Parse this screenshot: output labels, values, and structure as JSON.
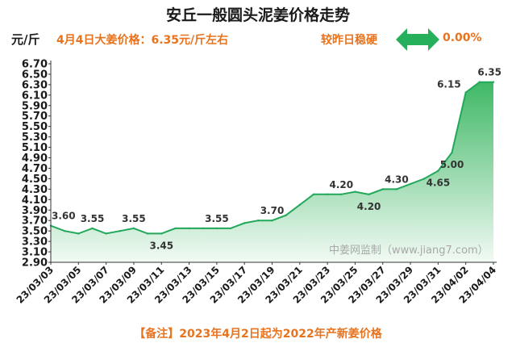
{
  "header": {
    "title": "安丘一般圆头泥姜价格走势",
    "unit": "元/斤",
    "price_note": "4月4日大姜价格：6.35元/斤左右",
    "compare_label": "较昨日稳硬",
    "change": "0.00%"
  },
  "footer": {
    "note": "【备注】2023年4月2日起为2022年产新姜价格"
  },
  "watermark": "中姜网监制（www.jiang7.com）",
  "colors": {
    "accent": "#e8731e",
    "arrow": "#27b05c",
    "line": "#22a85a",
    "fill_top": "#4cbf6e",
    "fill_bottom": "#f2faf4"
  },
  "icons": {
    "trend_arrow": "double-arrow-icon"
  },
  "chart_data": {
    "type": "area",
    "title": "安丘一般圆头泥姜价格走势",
    "ylabel": "元/斤",
    "ylim": [
      2.9,
      6.7
    ],
    "yticks": [
      2.9,
      3.1,
      3.3,
      3.5,
      3.7,
      3.9,
      4.1,
      4.3,
      4.5,
      4.7,
      4.9,
      5.1,
      5.3,
      5.5,
      5.7,
      5.9,
      6.1,
      6.3,
      6.5,
      6.7
    ],
    "ytick_labels": [
      "2.90",
      "3.10",
      "3.30",
      "3.50",
      "3.70",
      "3.90",
      "4.10",
      "4.30",
      "4.50",
      "4.70",
      "4.90",
      "5.10",
      "5.30",
      "5.50",
      "5.70",
      "5.90",
      "6.10",
      "6.30",
      "6.50",
      "6.70"
    ],
    "x": [
      "23/03/03",
      "23/03/04",
      "23/03/05",
      "23/03/06",
      "23/03/07",
      "23/03/08",
      "23/03/09",
      "23/03/10",
      "23/03/11",
      "23/03/12",
      "23/03/13",
      "23/03/14",
      "23/03/15",
      "23/03/16",
      "23/03/17",
      "23/03/18",
      "23/03/19",
      "23/03/20",
      "23/03/21",
      "23/03/22",
      "23/03/23",
      "23/03/24",
      "23/03/25",
      "23/03/26",
      "23/03/27",
      "23/03/28",
      "23/03/29",
      "23/03/30",
      "23/03/31",
      "23/04/01",
      "23/04/02",
      "23/04/03",
      "23/04/04"
    ],
    "x_tick_labels": [
      "23/03/03",
      "23/03/05",
      "23/03/07",
      "23/03/09",
      "23/03/11",
      "23/03/13",
      "23/03/15",
      "23/03/17",
      "23/03/19",
      "23/03/21",
      "23/03/23",
      "23/03/25",
      "23/03/27",
      "23/03/29",
      "23/03/31",
      "23/04/02",
      "23/04/04"
    ],
    "values": [
      3.6,
      3.5,
      3.45,
      3.55,
      3.45,
      3.5,
      3.55,
      3.45,
      3.45,
      3.55,
      3.55,
      3.55,
      3.55,
      3.55,
      3.65,
      3.7,
      3.7,
      3.8,
      4.0,
      4.2,
      4.2,
      4.2,
      4.25,
      4.2,
      4.3,
      4.3,
      4.4,
      4.5,
      4.65,
      5.0,
      6.15,
      6.35,
      6.35
    ],
    "data_labels": [
      {
        "index": 0,
        "text": "3.60",
        "pos": "above"
      },
      {
        "index": 3,
        "text": "3.55",
        "pos": "above"
      },
      {
        "index": 6,
        "text": "3.55",
        "pos": "above"
      },
      {
        "index": 8,
        "text": "3.45",
        "pos": "below"
      },
      {
        "index": 12,
        "text": "3.55",
        "pos": "above"
      },
      {
        "index": 16,
        "text": "3.70",
        "pos": "above"
      },
      {
        "index": 21,
        "text": "4.20",
        "pos": "above"
      },
      {
        "index": 23,
        "text": "4.20",
        "pos": "below"
      },
      {
        "index": 25,
        "text": "4.30",
        "pos": "above"
      },
      {
        "index": 28,
        "text": "4.65",
        "pos": "below"
      },
      {
        "index": 29,
        "text": "5.00",
        "pos": "below"
      },
      {
        "index": 30,
        "text": "6.15",
        "pos": "left"
      },
      {
        "index": 32,
        "text": "6.35",
        "pos": "above"
      }
    ],
    "grid": false,
    "legend": "none"
  }
}
